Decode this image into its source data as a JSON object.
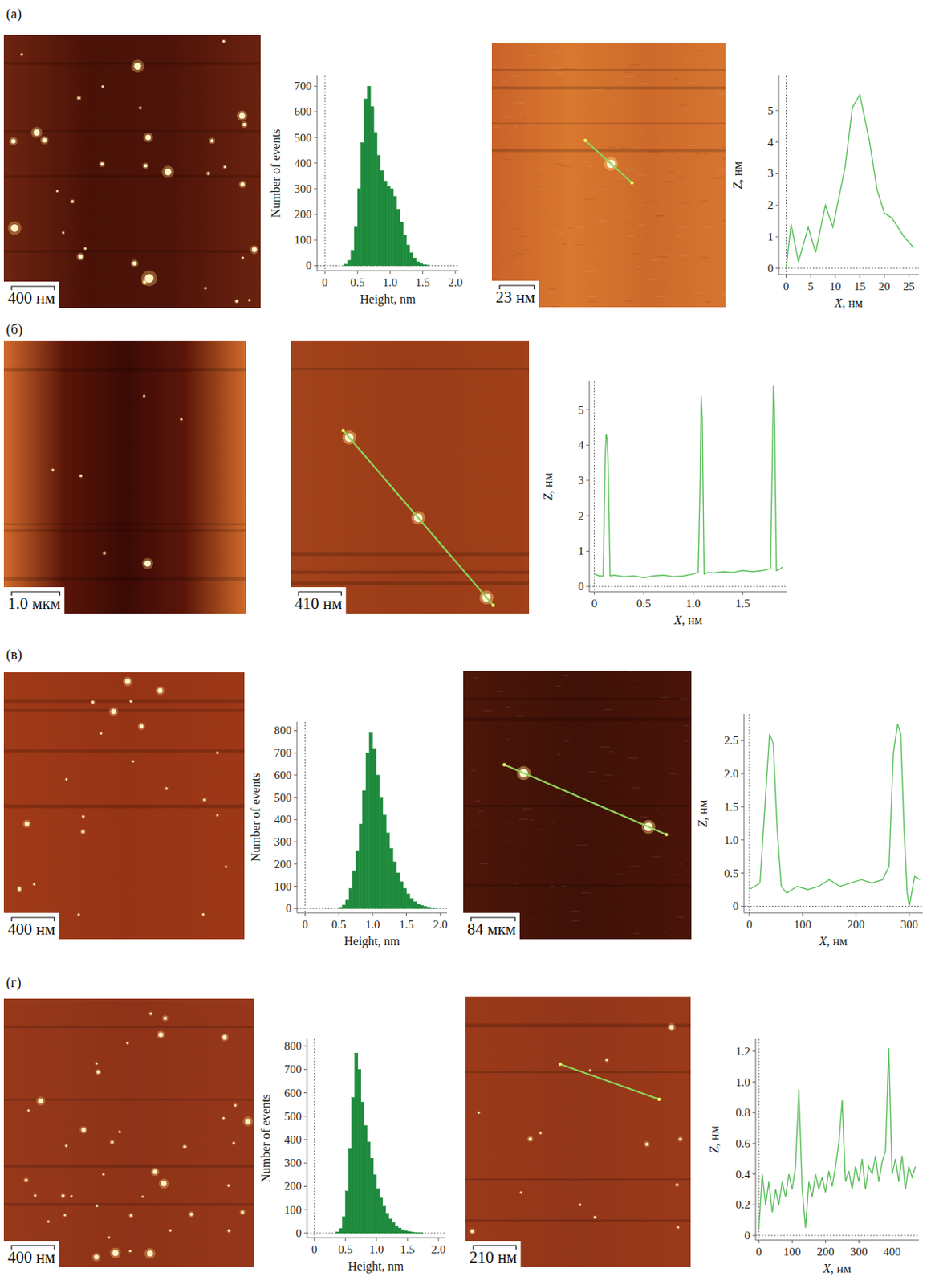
{
  "panel_labels": [
    "(а)",
    "(б)",
    "(в)",
    "(г)"
  ],
  "chart_data": [
    {
      "type": "image",
      "scale_bar": "400 нм"
    },
    {
      "type": "histogram",
      "x_label": "Height, nm",
      "y_label": "Number of events",
      "bins": [
        0.3,
        0.35,
        0.4,
        0.45,
        0.5,
        0.55,
        0.6,
        0.65,
        0.7,
        0.75,
        0.8,
        0.85,
        0.9,
        0.95,
        1.0,
        1.05,
        1.1,
        1.15,
        1.2,
        1.25,
        1.3,
        1.35,
        1.4,
        1.45,
        1.5,
        1.55,
        1.6
      ],
      "counts": [
        5,
        20,
        60,
        150,
        300,
        480,
        650,
        700,
        620,
        520,
        430,
        370,
        330,
        310,
        300,
        270,
        220,
        170,
        120,
        80,
        50,
        30,
        15,
        8,
        4,
        2
      ],
      "color": "#1e8a3c",
      "xlim": [
        -0.12,
        2.05
      ],
      "ylim": [
        -20,
        740
      ],
      "xticks": [
        0,
        0.5,
        {
          "value": 1,
          "label": "1.0"
        },
        1.5,
        {
          "value": 2,
          "label": "2.0"
        }
      ],
      "yticks": [
        0,
        100,
        200,
        300,
        400,
        500,
        600,
        700
      ]
    },
    {
      "type": "image",
      "scale_bar": "23 нм"
    },
    {
      "type": "line",
      "x_label": "X, нм",
      "y_label": "Z, нм",
      "color": "#5cbf5c",
      "x": [
        0,
        1,
        2.5,
        4.5,
        6,
        8,
        9.5,
        12,
        13.5,
        15,
        17,
        18.5,
        20,
        21.5,
        24,
        26
      ],
      "values": [
        0,
        1.4,
        0.2,
        1.3,
        0.5,
        2.0,
        1.3,
        3.2,
        5.1,
        5.5,
        4.0,
        2.5,
        1.75,
        1.6,
        1.0,
        0.65
      ],
      "xlim": [
        -1.5,
        27
      ],
      "ylim": [
        -0.2,
        6.1
      ],
      "xticks": [
        0,
        5,
        10,
        15,
        20,
        25
      ],
      "yticks": [
        0,
        1,
        2,
        3,
        4,
        5
      ]
    },
    {
      "type": "image",
      "scale_bar": "1.0 мкм"
    },
    {
      "type": "image",
      "scale_bar": "410 нм"
    },
    {
      "type": "line",
      "x_label": "X, нм",
      "y_label": "Z, нм",
      "color": "#5cbf5c",
      "x": [
        0,
        0.05,
        0.09,
        0.11,
        0.12,
        0.13,
        0.14,
        0.16,
        0.2,
        0.3,
        0.4,
        0.5,
        0.6,
        0.7,
        0.8,
        0.9,
        1.0,
        1.05,
        1.07,
        1.08,
        1.09,
        1.11,
        1.15,
        1.2,
        1.3,
        1.4,
        1.5,
        1.6,
        1.7,
        1.78,
        1.8,
        1.81,
        1.82,
        1.84,
        1.88,
        1.9
      ],
      "values": [
        0.35,
        0.3,
        0.3,
        3.6,
        4.3,
        4.2,
        3.5,
        0.3,
        0.32,
        0.28,
        0.3,
        0.25,
        0.3,
        0.32,
        0.28,
        0.3,
        0.35,
        0.4,
        3.0,
        5.4,
        4.8,
        0.35,
        0.4,
        0.38,
        0.42,
        0.4,
        0.45,
        0.42,
        0.45,
        0.5,
        3.8,
        5.7,
        5.0,
        0.45,
        0.5,
        0.55
      ],
      "xlim": [
        -0.05,
        1.95
      ],
      "ylim": [
        -0.15,
        5.8
      ],
      "xticks": [
        0,
        0.5,
        {
          "value": 1,
          "label": "1.0"
        },
        1.5
      ],
      "yticks": [
        0,
        1,
        2,
        3,
        4,
        5
      ]
    },
    {
      "type": "image",
      "scale_bar": "400 нм"
    },
    {
      "type": "histogram",
      "x_label": "Height, nm",
      "y_label": "Number of events",
      "bins": [
        0.5,
        0.55,
        0.6,
        0.65,
        0.7,
        0.75,
        0.8,
        0.85,
        0.9,
        0.95,
        1.0,
        1.05,
        1.1,
        1.15,
        1.2,
        1.25,
        1.3,
        1.35,
        1.4,
        1.45,
        1.5,
        1.55,
        1.6,
        1.65,
        1.7,
        1.75,
        1.8,
        1.85,
        1.9,
        1.95
      ],
      "counts": [
        5,
        15,
        40,
        90,
        170,
        260,
        380,
        530,
        700,
        790,
        720,
        600,
        500,
        420,
        340,
        270,
        210,
        160,
        120,
        90,
        65,
        45,
        30,
        20,
        14,
        9,
        6,
        3,
        2
      ],
      "color": "#1e8a3c",
      "xlim": [
        -0.12,
        2.1
      ],
      "ylim": [
        -20,
        840
      ],
      "xticks": [
        0,
        0.5,
        {
          "value": 1,
          "label": "1.0"
        },
        1.5,
        {
          "value": 2,
          "label": "2.0"
        }
      ],
      "yticks": [
        0,
        100,
        200,
        300,
        400,
        500,
        600,
        700,
        800
      ]
    },
    {
      "type": "image",
      "scale_bar": "84 мкм"
    },
    {
      "type": "line",
      "x_label": "X, нм",
      "y_label": "Z, нм",
      "color": "#5cbf5c",
      "x": [
        0,
        10,
        20,
        30,
        38,
        45,
        52,
        60,
        70,
        90,
        110,
        130,
        150,
        170,
        190,
        210,
        230,
        250,
        262,
        270,
        278,
        284,
        290,
        296,
        300,
        310,
        320
      ],
      "values": [
        0.25,
        0.3,
        0.35,
        1.6,
        2.6,
        2.45,
        1.2,
        0.3,
        0.2,
        0.3,
        0.25,
        0.3,
        0.4,
        0.3,
        0.35,
        0.4,
        0.35,
        0.4,
        0.6,
        2.3,
        2.75,
        2.6,
        1.2,
        0.2,
        0.0,
        0.45,
        0.4
      ],
      "xlim": [
        -10,
        325
      ],
      "ylim": [
        -0.1,
        2.9
      ],
      "xticks": [
        0,
        100,
        200,
        300
      ],
      "yticks": [
        0,
        0.5,
        {
          "value": 1,
          "label": "1.0"
        },
        1.5,
        {
          "value": 2,
          "label": "2.0"
        },
        2.5
      ]
    },
    {
      "type": "image",
      "scale_bar": "400 нм"
    },
    {
      "type": "histogram",
      "x_label": "Height, nm",
      "y_label": "Number of events",
      "bins": [
        0.35,
        0.4,
        0.45,
        0.5,
        0.55,
        0.6,
        0.65,
        0.7,
        0.75,
        0.8,
        0.85,
        0.9,
        0.95,
        1.0,
        1.05,
        1.1,
        1.15,
        1.2,
        1.25,
        1.3,
        1.35,
        1.4,
        1.45,
        1.5,
        1.55,
        1.6,
        1.65,
        1.7,
        1.75
      ],
      "counts": [
        5,
        20,
        70,
        180,
        360,
        580,
        770,
        700,
        560,
        460,
        390,
        320,
        250,
        190,
        150,
        115,
        85,
        60,
        45,
        32,
        22,
        15,
        10,
        7,
        5,
        3,
        2,
        1
      ],
      "color": "#1e8a3c",
      "xlim": [
        -0.12,
        2.1
      ],
      "ylim": [
        -20,
        830
      ],
      "xticks": [
        0,
        0.5,
        {
          "value": 1,
          "label": "1.0"
        },
        1.5,
        {
          "value": 2,
          "label": "2.0"
        }
      ],
      "yticks": [
        0,
        100,
        200,
        300,
        400,
        500,
        600,
        700,
        800
      ]
    },
    {
      "type": "image",
      "scale_bar": "210 нм"
    },
    {
      "type": "line",
      "x_label": "X, нм",
      "y_label": "Z, нм",
      "color": "#5cbf5c",
      "x": [
        0,
        10,
        20,
        30,
        40,
        50,
        60,
        70,
        80,
        90,
        100,
        110,
        120,
        130,
        140,
        150,
        160,
        170,
        180,
        190,
        200,
        210,
        220,
        230,
        240,
        250,
        260,
        270,
        280,
        290,
        300,
        310,
        320,
        330,
        340,
        350,
        360,
        370,
        380,
        390,
        400,
        410,
        420,
        430,
        440,
        450,
        460,
        470
      ],
      "values": [
        0.05,
        0.4,
        0.2,
        0.35,
        0.15,
        0.3,
        0.2,
        0.35,
        0.25,
        0.4,
        0.3,
        0.45,
        0.95,
        0.3,
        0.05,
        0.35,
        0.25,
        0.4,
        0.3,
        0.38,
        0.28,
        0.42,
        0.32,
        0.45,
        0.6,
        0.88,
        0.35,
        0.42,
        0.3,
        0.45,
        0.35,
        0.5,
        0.3,
        0.45,
        0.4,
        0.52,
        0.35,
        0.48,
        0.55,
        1.22,
        0.4,
        0.5,
        0.35,
        0.52,
        0.3,
        0.45,
        0.38,
        0.45
      ],
      "xlim": [
        -10,
        480
      ],
      "ylim": [
        -0.03,
        1.28
      ],
      "xticks": [
        0,
        100,
        200,
        300,
        400
      ],
      "yticks": [
        0,
        0.2,
        0.4,
        0.6,
        0.8,
        {
          "value": 1,
          "label": "1.0"
        },
        1.2
      ]
    }
  ]
}
